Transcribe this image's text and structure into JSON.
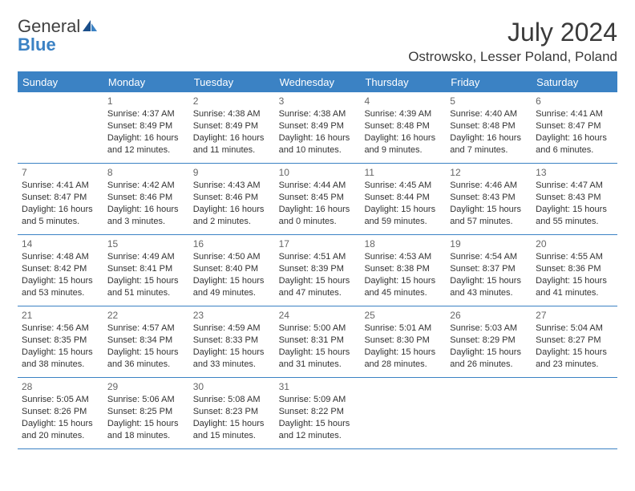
{
  "logo": {
    "text_gray": "General",
    "text_blue": "Blue"
  },
  "title": "July 2024",
  "location": "Ostrowsko, Lesser Poland, Poland",
  "colors": {
    "accent": "#3b82c4",
    "text": "#333333",
    "daynum": "#666666",
    "bg": "#ffffff",
    "header_text": "#ffffff"
  },
  "day_headers": [
    "Sunday",
    "Monday",
    "Tuesday",
    "Wednesday",
    "Thursday",
    "Friday",
    "Saturday"
  ],
  "weeks": [
    [
      {
        "n": "",
        "sr": "",
        "ss": "",
        "d1": "",
        "d2": ""
      },
      {
        "n": "1",
        "sr": "Sunrise: 4:37 AM",
        "ss": "Sunset: 8:49 PM",
        "d1": "Daylight: 16 hours",
        "d2": "and 12 minutes."
      },
      {
        "n": "2",
        "sr": "Sunrise: 4:38 AM",
        "ss": "Sunset: 8:49 PM",
        "d1": "Daylight: 16 hours",
        "d2": "and 11 minutes."
      },
      {
        "n": "3",
        "sr": "Sunrise: 4:38 AM",
        "ss": "Sunset: 8:49 PM",
        "d1": "Daylight: 16 hours",
        "d2": "and 10 minutes."
      },
      {
        "n": "4",
        "sr": "Sunrise: 4:39 AM",
        "ss": "Sunset: 8:48 PM",
        "d1": "Daylight: 16 hours",
        "d2": "and 9 minutes."
      },
      {
        "n": "5",
        "sr": "Sunrise: 4:40 AM",
        "ss": "Sunset: 8:48 PM",
        "d1": "Daylight: 16 hours",
        "d2": "and 7 minutes."
      },
      {
        "n": "6",
        "sr": "Sunrise: 4:41 AM",
        "ss": "Sunset: 8:47 PM",
        "d1": "Daylight: 16 hours",
        "d2": "and 6 minutes."
      }
    ],
    [
      {
        "n": "7",
        "sr": "Sunrise: 4:41 AM",
        "ss": "Sunset: 8:47 PM",
        "d1": "Daylight: 16 hours",
        "d2": "and 5 minutes."
      },
      {
        "n": "8",
        "sr": "Sunrise: 4:42 AM",
        "ss": "Sunset: 8:46 PM",
        "d1": "Daylight: 16 hours",
        "d2": "and 3 minutes."
      },
      {
        "n": "9",
        "sr": "Sunrise: 4:43 AM",
        "ss": "Sunset: 8:46 PM",
        "d1": "Daylight: 16 hours",
        "d2": "and 2 minutes."
      },
      {
        "n": "10",
        "sr": "Sunrise: 4:44 AM",
        "ss": "Sunset: 8:45 PM",
        "d1": "Daylight: 16 hours",
        "d2": "and 0 minutes."
      },
      {
        "n": "11",
        "sr": "Sunrise: 4:45 AM",
        "ss": "Sunset: 8:44 PM",
        "d1": "Daylight: 15 hours",
        "d2": "and 59 minutes."
      },
      {
        "n": "12",
        "sr": "Sunrise: 4:46 AM",
        "ss": "Sunset: 8:43 PM",
        "d1": "Daylight: 15 hours",
        "d2": "and 57 minutes."
      },
      {
        "n": "13",
        "sr": "Sunrise: 4:47 AM",
        "ss": "Sunset: 8:43 PM",
        "d1": "Daylight: 15 hours",
        "d2": "and 55 minutes."
      }
    ],
    [
      {
        "n": "14",
        "sr": "Sunrise: 4:48 AM",
        "ss": "Sunset: 8:42 PM",
        "d1": "Daylight: 15 hours",
        "d2": "and 53 minutes."
      },
      {
        "n": "15",
        "sr": "Sunrise: 4:49 AM",
        "ss": "Sunset: 8:41 PM",
        "d1": "Daylight: 15 hours",
        "d2": "and 51 minutes."
      },
      {
        "n": "16",
        "sr": "Sunrise: 4:50 AM",
        "ss": "Sunset: 8:40 PM",
        "d1": "Daylight: 15 hours",
        "d2": "and 49 minutes."
      },
      {
        "n": "17",
        "sr": "Sunrise: 4:51 AM",
        "ss": "Sunset: 8:39 PM",
        "d1": "Daylight: 15 hours",
        "d2": "and 47 minutes."
      },
      {
        "n": "18",
        "sr": "Sunrise: 4:53 AM",
        "ss": "Sunset: 8:38 PM",
        "d1": "Daylight: 15 hours",
        "d2": "and 45 minutes."
      },
      {
        "n": "19",
        "sr": "Sunrise: 4:54 AM",
        "ss": "Sunset: 8:37 PM",
        "d1": "Daylight: 15 hours",
        "d2": "and 43 minutes."
      },
      {
        "n": "20",
        "sr": "Sunrise: 4:55 AM",
        "ss": "Sunset: 8:36 PM",
        "d1": "Daylight: 15 hours",
        "d2": "and 41 minutes."
      }
    ],
    [
      {
        "n": "21",
        "sr": "Sunrise: 4:56 AM",
        "ss": "Sunset: 8:35 PM",
        "d1": "Daylight: 15 hours",
        "d2": "and 38 minutes."
      },
      {
        "n": "22",
        "sr": "Sunrise: 4:57 AM",
        "ss": "Sunset: 8:34 PM",
        "d1": "Daylight: 15 hours",
        "d2": "and 36 minutes."
      },
      {
        "n": "23",
        "sr": "Sunrise: 4:59 AM",
        "ss": "Sunset: 8:33 PM",
        "d1": "Daylight: 15 hours",
        "d2": "and 33 minutes."
      },
      {
        "n": "24",
        "sr": "Sunrise: 5:00 AM",
        "ss": "Sunset: 8:31 PM",
        "d1": "Daylight: 15 hours",
        "d2": "and 31 minutes."
      },
      {
        "n": "25",
        "sr": "Sunrise: 5:01 AM",
        "ss": "Sunset: 8:30 PM",
        "d1": "Daylight: 15 hours",
        "d2": "and 28 minutes."
      },
      {
        "n": "26",
        "sr": "Sunrise: 5:03 AM",
        "ss": "Sunset: 8:29 PM",
        "d1": "Daylight: 15 hours",
        "d2": "and 26 minutes."
      },
      {
        "n": "27",
        "sr": "Sunrise: 5:04 AM",
        "ss": "Sunset: 8:27 PM",
        "d1": "Daylight: 15 hours",
        "d2": "and 23 minutes."
      }
    ],
    [
      {
        "n": "28",
        "sr": "Sunrise: 5:05 AM",
        "ss": "Sunset: 8:26 PM",
        "d1": "Daylight: 15 hours",
        "d2": "and 20 minutes."
      },
      {
        "n": "29",
        "sr": "Sunrise: 5:06 AM",
        "ss": "Sunset: 8:25 PM",
        "d1": "Daylight: 15 hours",
        "d2": "and 18 minutes."
      },
      {
        "n": "30",
        "sr": "Sunrise: 5:08 AM",
        "ss": "Sunset: 8:23 PM",
        "d1": "Daylight: 15 hours",
        "d2": "and 15 minutes."
      },
      {
        "n": "31",
        "sr": "Sunrise: 5:09 AM",
        "ss": "Sunset: 8:22 PM",
        "d1": "Daylight: 15 hours",
        "d2": "and 12 minutes."
      },
      {
        "n": "",
        "sr": "",
        "ss": "",
        "d1": "",
        "d2": ""
      },
      {
        "n": "",
        "sr": "",
        "ss": "",
        "d1": "",
        "d2": ""
      },
      {
        "n": "",
        "sr": "",
        "ss": "",
        "d1": "",
        "d2": ""
      }
    ]
  ]
}
